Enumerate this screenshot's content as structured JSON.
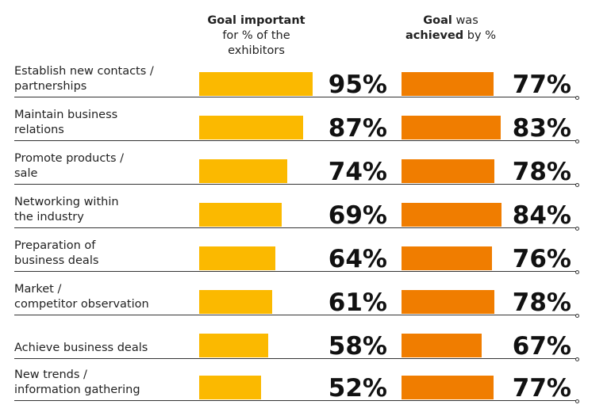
{
  "header": {
    "important_bold": "Goal important",
    "important_line2": "for % of the",
    "important_line3": "exhibitors",
    "achieved_bold1": "Goal",
    "achieved_rest1": " was",
    "achieved_bold2": "achieved",
    "achieved_rest2": " by %"
  },
  "chart_data": {
    "type": "bar",
    "orientation": "horizontal",
    "categories": [
      [
        "Establish new contacts /",
        "partnerships"
      ],
      [
        "Maintain business",
        "relations"
      ],
      [
        "Promote products /",
        "sale"
      ],
      [
        "Networking within",
        "the industry"
      ],
      [
        "Preparation of",
        "business deals"
      ],
      [
        "Market /",
        "competitor observation"
      ],
      [
        "Achieve business deals"
      ],
      [
        "New trends /",
        "information gathering"
      ]
    ],
    "series": [
      {
        "name": "Goal important for % of the exhibitors",
        "values": [
          95,
          87,
          74,
          69,
          64,
          61,
          58,
          52
        ],
        "labels": [
          "95%",
          "87%",
          "74%",
          "69%",
          "64%",
          "61%",
          "58%",
          "52%"
        ],
        "color": "#fbb900"
      },
      {
        "name": "Goal was achieved by %",
        "values": [
          77,
          83,
          78,
          84,
          76,
          78,
          67,
          77
        ],
        "labels": [
          "77%",
          "83%",
          "78%",
          "84%",
          "76%",
          "78%",
          "67%",
          "77%"
        ],
        "color": "#f07d00"
      }
    ],
    "xlim": [
      0,
      100
    ]
  }
}
